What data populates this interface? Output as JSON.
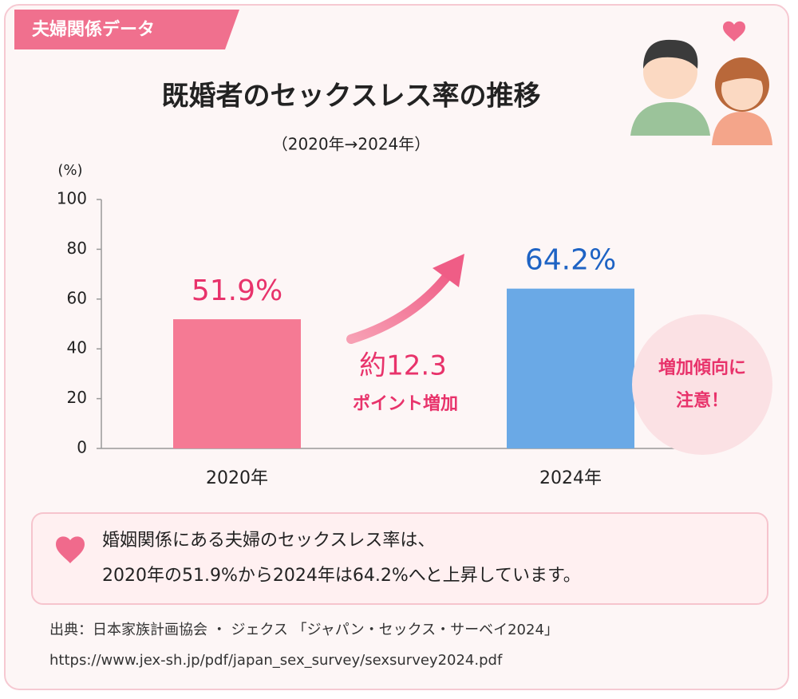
{
  "tag": "夫婦関係データ",
  "chart_data": {
    "type": "bar",
    "title": "既婚者のセックスレス率の推移",
    "subtitle": "（2020年→2024年）",
    "y_label": "(%)",
    "categories": [
      "2020年",
      "2024年"
    ],
    "values": [
      51.9,
      64.2
    ],
    "value_labels": [
      "51.9%",
      "64.2%"
    ],
    "colors": [
      "#f57a94",
      "#6aa9e6"
    ],
    "label_colors": [
      "#e8336b",
      "#1e63c4"
    ],
    "ylim": [
      0,
      100
    ],
    "yticks": [
      0,
      20,
      40,
      60,
      80,
      100
    ],
    "grid": false,
    "annotation": [
      "約12.3",
      "ポイント増加"
    ],
    "callout": [
      "増加傾向に",
      "注意！"
    ]
  },
  "note": {
    "lines": [
      "婚姻関係にある夫婦のセックスレス率は、",
      "2020年の51.9%から2024年は64.2%へと上昇しています。"
    ]
  },
  "source": {
    "lines": [
      "出典：日本家族計画協会 ・ ジェクス 「ジャパン・セックス・サーベイ2024」",
      "https://www.jex-sh.jp/pdf/japan_sex_survey/sexsurvey2024.pdf"
    ]
  }
}
